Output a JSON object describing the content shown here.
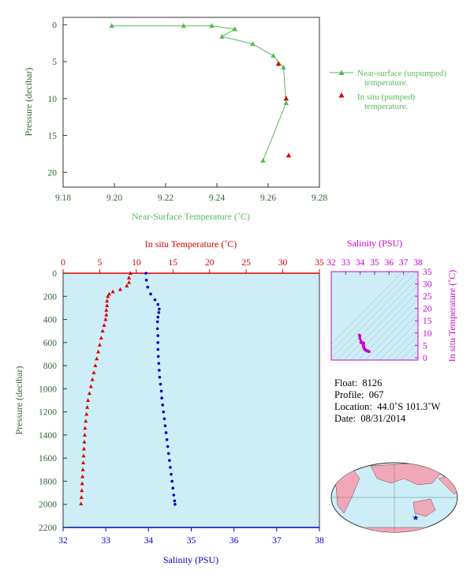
{
  "chart_data": [
    {
      "id": "near-surface-temperature",
      "type": "scatter",
      "xlabel": "Near-Surface Temperature (˚C)",
      "ylabel": "Pressure (decibar)",
      "xlim": [
        9.18,
        9.28
      ],
      "ylim": [
        22,
        -1
      ],
      "xticks": [
        "9.18",
        "9.20",
        "9.22",
        "9.24",
        "9.26",
        "9.28"
      ],
      "yticks": [
        "0",
        "5",
        "10",
        "15",
        "20"
      ],
      "series": [
        {
          "name": "Near-surface (unpumped) temperature.",
          "color": "#55bb55",
          "marker": "triangle",
          "line": true,
          "points": [
            [
              9.199,
              0.15
            ],
            [
              9.227,
              0.15
            ],
            [
              9.238,
              0.15
            ],
            [
              9.247,
              0.6
            ],
            [
              9.242,
              1.6
            ],
            [
              9.254,
              2.6
            ],
            [
              9.262,
              4.2
            ],
            [
              9.266,
              5.8
            ],
            [
              9.267,
              10.6
            ],
            [
              9.258,
              18.4
            ]
          ]
        },
        {
          "name": "In situ (pumped) temperature.",
          "color": "#dd0000",
          "marker": "triangle",
          "line": false,
          "points": [
            [
              9.264,
              5.3
            ],
            [
              9.267,
              10.0
            ],
            [
              9.268,
              17.7
            ]
          ]
        }
      ],
      "legend": [
        "Near-surface (unpumped)",
        "temperature.",
        "In situ (pumped)",
        "temperature."
      ]
    },
    {
      "id": "profile",
      "type": "scatter",
      "xlabel_top": "In situ Temperature (˚C)",
      "xlabel_bottom": "Salinity (PSU)",
      "ylabel": "Pressure (decibar)",
      "temp_lim": [
        0,
        35
      ],
      "sal_lim": [
        32,
        38
      ],
      "ylim": [
        2200,
        0
      ],
      "temp_ticks": [
        "0",
        "5",
        "10",
        "15",
        "20",
        "25",
        "30",
        "35"
      ],
      "sal_ticks": [
        "32",
        "33",
        "34",
        "35",
        "36",
        "37",
        "38"
      ],
      "yticks": [
        "0",
        "200",
        "400",
        "600",
        "800",
        "1000",
        "1200",
        "1400",
        "1600",
        "1800",
        "2000",
        "2200"
      ],
      "temperature": [
        [
          9.2,
          0
        ],
        [
          9.0,
          40
        ],
        [
          9.0,
          80
        ],
        [
          8.7,
          110
        ],
        [
          7.8,
          140
        ],
        [
          6.8,
          160
        ],
        [
          6.3,
          180
        ],
        [
          6.1,
          200
        ],
        [
          6.0,
          240
        ],
        [
          6.0,
          280
        ],
        [
          5.9,
          320
        ],
        [
          5.9,
          360
        ],
        [
          5.8,
          400
        ],
        [
          5.6,
          450
        ],
        [
          5.4,
          500
        ],
        [
          5.2,
          560
        ],
        [
          5.0,
          620
        ],
        [
          4.8,
          680
        ],
        [
          4.6,
          740
        ],
        [
          4.4,
          800
        ],
        [
          4.2,
          860
        ],
        [
          4.0,
          920
        ],
        [
          3.8,
          980
        ],
        [
          3.6,
          1040
        ],
        [
          3.4,
          1100
        ],
        [
          3.3,
          1160
        ],
        [
          3.2,
          1220
        ],
        [
          3.1,
          1280
        ],
        [
          3.0,
          1340
        ],
        [
          2.95,
          1400
        ],
        [
          2.9,
          1460
        ],
        [
          2.85,
          1520
        ],
        [
          2.8,
          1580
        ],
        [
          2.75,
          1640
        ],
        [
          2.7,
          1700
        ],
        [
          2.65,
          1760
        ],
        [
          2.6,
          1820
        ],
        [
          2.55,
          1880
        ],
        [
          2.5,
          1940
        ],
        [
          2.45,
          1995
        ]
      ],
      "salinity": [
        [
          33.94,
          0
        ],
        [
          33.95,
          60
        ],
        [
          33.98,
          120
        ],
        [
          34.05,
          180
        ],
        [
          34.15,
          230
        ],
        [
          34.22,
          270
        ],
        [
          34.25,
          310
        ],
        [
          34.24,
          340
        ],
        [
          34.22,
          380
        ],
        [
          34.21,
          420
        ],
        [
          34.21,
          480
        ],
        [
          34.22,
          540
        ],
        [
          34.22,
          600
        ],
        [
          34.22,
          660
        ],
        [
          34.23,
          720
        ],
        [
          34.24,
          780
        ],
        [
          34.25,
          840
        ],
        [
          34.26,
          900
        ],
        [
          34.28,
          960
        ],
        [
          34.3,
          1020
        ],
        [
          34.31,
          1080
        ],
        [
          34.33,
          1140
        ],
        [
          34.35,
          1200
        ],
        [
          34.37,
          1260
        ],
        [
          34.39,
          1320
        ],
        [
          34.41,
          1380
        ],
        [
          34.43,
          1440
        ],
        [
          34.45,
          1500
        ],
        [
          34.47,
          1560
        ],
        [
          34.49,
          1620
        ],
        [
          34.51,
          1680
        ],
        [
          34.53,
          1740
        ],
        [
          34.55,
          1800
        ],
        [
          34.57,
          1860
        ],
        [
          34.59,
          1920
        ],
        [
          34.61,
          1970
        ],
        [
          34.62,
          2000
        ]
      ]
    },
    {
      "id": "ts-diagram",
      "type": "scatter",
      "xlabel": "Salinity (PSU)",
      "ylabel": "In situ Temperature (˚C)",
      "xlim": [
        32,
        38
      ],
      "ylim": [
        -1,
        35
      ],
      "xticks": [
        "32",
        "33",
        "34",
        "35",
        "36",
        "37",
        "38"
      ],
      "yticks": [
        "0",
        "5",
        "10",
        "15",
        "20",
        "25",
        "30",
        "35"
      ]
    }
  ],
  "float_info": {
    "float_label": "Float:",
    "float_value": "8126",
    "profile_label": "Profile:",
    "profile_value": "067",
    "location_label": "Location:",
    "location_value": "44.0˚S  101.3˚W",
    "date_label": "Date:",
    "date_value": "08/31/2014"
  },
  "colors": {
    "near_surface": "#55bb55",
    "temperature": "#dd0000",
    "salinity": "#0000cc",
    "ts_magenta": "#cc00cc",
    "profile_bg": "#cdeef7",
    "axis_label": "#336633"
  }
}
